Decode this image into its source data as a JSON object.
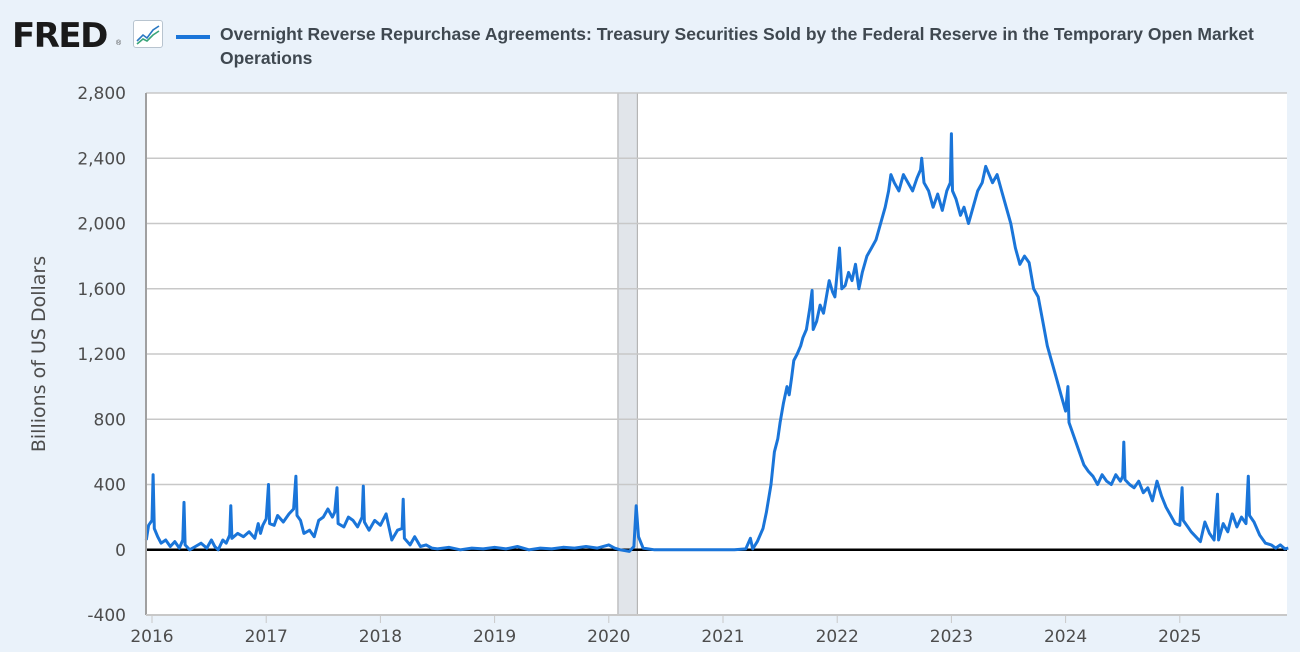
{
  "header": {
    "logo_text": "FRED",
    "logo_registered": "®",
    "logo_icon": "line-chart-icon",
    "title": "Overnight Reverse Repurchase Agreements: Treasury Securities Sold by the Federal Reserve in the Temporary Open Market Operations"
  },
  "colors": {
    "series": "#1a75d9",
    "background": "#eaf2fa",
    "plot_background": "#ffffff",
    "gridline": "#c8c8c8",
    "zero_line": "#000000",
    "recession_shade": "#e1e5ea"
  },
  "chart_data": {
    "type": "line",
    "title": "Overnight Reverse Repurchase Agreements: Treasury Securities Sold by the Federal Reserve in the Temporary Open Market Operations",
    "xlabel": "",
    "ylabel": "Billions of US Dollars",
    "ylim": [
      -400,
      2800
    ],
    "xlim": [
      2015.95,
      2025.95
    ],
    "yticks": [
      -400,
      0,
      400,
      800,
      1200,
      1600,
      2000,
      2400,
      2800
    ],
    "ytick_labels": [
      "-400",
      "0",
      "400",
      "800",
      "1,200",
      "1,600",
      "2,000",
      "2,400",
      "2,800"
    ],
    "xticks": [
      2016,
      2017,
      2018,
      2019,
      2020,
      2021,
      2022,
      2023,
      2024,
      2025
    ],
    "xtick_labels": [
      "2016",
      "2017",
      "2018",
      "2019",
      "2020",
      "2021",
      "2022",
      "2023",
      "2024",
      "2025"
    ],
    "grid": true,
    "legend": "top-left",
    "recessions": [
      [
        2020.08,
        2020.25
      ]
    ],
    "series": [
      {
        "name": "Overnight Reverse Repurchase Agreements: Treasury Securities Sold by the Federal Reserve in the Temporary Open Market Operations",
        "points": [
          [
            2015.95,
            60
          ],
          [
            2015.97,
            150
          ],
          [
            2016.0,
            180
          ],
          [
            2016.01,
            460
          ],
          [
            2016.02,
            130
          ],
          [
            2016.05,
            80
          ],
          [
            2016.08,
            40
          ],
          [
            2016.12,
            60
          ],
          [
            2016.16,
            20
          ],
          [
            2016.2,
            50
          ],
          [
            2016.24,
            10
          ],
          [
            2016.27,
            60
          ],
          [
            2016.28,
            290
          ],
          [
            2016.29,
            30
          ],
          [
            2016.33,
            0
          ],
          [
            2016.38,
            20
          ],
          [
            2016.43,
            40
          ],
          [
            2016.48,
            10
          ],
          [
            2016.52,
            60
          ],
          [
            2016.55,
            20
          ],
          [
            2016.58,
            0
          ],
          [
            2016.62,
            60
          ],
          [
            2016.65,
            40
          ],
          [
            2016.68,
            90
          ],
          [
            2016.69,
            270
          ],
          [
            2016.7,
            70
          ],
          [
            2016.75,
            100
          ],
          [
            2016.8,
            80
          ],
          [
            2016.85,
            110
          ],
          [
            2016.9,
            70
          ],
          [
            2016.93,
            160
          ],
          [
            2016.95,
            100
          ],
          [
            2016.97,
            150
          ],
          [
            2017.0,
            190
          ],
          [
            2017.02,
            400
          ],
          [
            2017.03,
            160
          ],
          [
            2017.07,
            150
          ],
          [
            2017.1,
            210
          ],
          [
            2017.15,
            170
          ],
          [
            2017.2,
            220
          ],
          [
            2017.24,
            250
          ],
          [
            2017.26,
            450
          ],
          [
            2017.27,
            210
          ],
          [
            2017.3,
            180
          ],
          [
            2017.33,
            100
          ],
          [
            2017.38,
            120
          ],
          [
            2017.42,
            80
          ],
          [
            2017.46,
            180
          ],
          [
            2017.5,
            200
          ],
          [
            2017.54,
            250
          ],
          [
            2017.58,
            200
          ],
          [
            2017.6,
            230
          ],
          [
            2017.62,
            380
          ],
          [
            2017.63,
            160
          ],
          [
            2017.68,
            140
          ],
          [
            2017.72,
            200
          ],
          [
            2017.76,
            180
          ],
          [
            2017.8,
            140
          ],
          [
            2017.84,
            200
          ],
          [
            2017.85,
            390
          ],
          [
            2017.86,
            170
          ],
          [
            2017.9,
            120
          ],
          [
            2017.95,
            180
          ],
          [
            2018.0,
            150
          ],
          [
            2018.05,
            220
          ],
          [
            2018.1,
            60
          ],
          [
            2018.15,
            120
          ],
          [
            2018.19,
            130
          ],
          [
            2018.2,
            310
          ],
          [
            2018.21,
            70
          ],
          [
            2018.26,
            30
          ],
          [
            2018.3,
            80
          ],
          [
            2018.35,
            20
          ],
          [
            2018.4,
            30
          ],
          [
            2018.45,
            10
          ],
          [
            2018.5,
            5
          ],
          [
            2018.6,
            15
          ],
          [
            2018.7,
            0
          ],
          [
            2018.8,
            10
          ],
          [
            2018.9,
            5
          ],
          [
            2019.0,
            15
          ],
          [
            2019.1,
            5
          ],
          [
            2019.2,
            20
          ],
          [
            2019.3,
            0
          ],
          [
            2019.4,
            10
          ],
          [
            2019.5,
            5
          ],
          [
            2019.6,
            15
          ],
          [
            2019.7,
            10
          ],
          [
            2019.8,
            20
          ],
          [
            2019.9,
            10
          ],
          [
            2020.0,
            30
          ],
          [
            2020.05,
            10
          ],
          [
            2020.1,
            0
          ],
          [
            2020.18,
            -10
          ],
          [
            2020.22,
            20
          ],
          [
            2020.24,
            270
          ],
          [
            2020.26,
            80
          ],
          [
            2020.3,
            10
          ],
          [
            2020.4,
            0
          ],
          [
            2020.5,
            0
          ],
          [
            2020.6,
            0
          ],
          [
            2020.7,
            0
          ],
          [
            2020.8,
            0
          ],
          [
            2020.9,
            0
          ],
          [
            2021.0,
            0
          ],
          [
            2021.1,
            0
          ],
          [
            2021.2,
            5
          ],
          [
            2021.24,
            70
          ],
          [
            2021.26,
            5
          ],
          [
            2021.3,
            50
          ],
          [
            2021.35,
            130
          ],
          [
            2021.38,
            230
          ],
          [
            2021.42,
            400
          ],
          [
            2021.45,
            600
          ],
          [
            2021.48,
            680
          ],
          [
            2021.5,
            780
          ],
          [
            2021.53,
            900
          ],
          [
            2021.56,
            1000
          ],
          [
            2021.58,
            950
          ],
          [
            2021.6,
            1050
          ],
          [
            2021.62,
            1160
          ],
          [
            2021.65,
            1200
          ],
          [
            2021.68,
            1250
          ],
          [
            2021.7,
            1300
          ],
          [
            2021.73,
            1350
          ],
          [
            2021.76,
            1480
          ],
          [
            2021.78,
            1590
          ],
          [
            2021.79,
            1350
          ],
          [
            2021.82,
            1400
          ],
          [
            2021.85,
            1500
          ],
          [
            2021.88,
            1450
          ],
          [
            2021.9,
            1530
          ],
          [
            2021.93,
            1650
          ],
          [
            2021.96,
            1580
          ],
          [
            2021.98,
            1550
          ],
          [
            2022.0,
            1700
          ],
          [
            2022.02,
            1850
          ],
          [
            2022.04,
            1600
          ],
          [
            2022.07,
            1620
          ],
          [
            2022.1,
            1700
          ],
          [
            2022.13,
            1650
          ],
          [
            2022.16,
            1750
          ],
          [
            2022.19,
            1600
          ],
          [
            2022.22,
            1700
          ],
          [
            2022.26,
            1800
          ],
          [
            2022.3,
            1850
          ],
          [
            2022.34,
            1900
          ],
          [
            2022.38,
            2000
          ],
          [
            2022.42,
            2100
          ],
          [
            2022.45,
            2200
          ],
          [
            2022.47,
            2300
          ],
          [
            2022.5,
            2250
          ],
          [
            2022.54,
            2200
          ],
          [
            2022.58,
            2300
          ],
          [
            2022.62,
            2250
          ],
          [
            2022.66,
            2200
          ],
          [
            2022.7,
            2280
          ],
          [
            2022.73,
            2330
          ],
          [
            2022.74,
            2400
          ],
          [
            2022.76,
            2250
          ],
          [
            2022.8,
            2200
          ],
          [
            2022.84,
            2100
          ],
          [
            2022.88,
            2180
          ],
          [
            2022.92,
            2080
          ],
          [
            2022.96,
            2200
          ],
          [
            2022.99,
            2250
          ],
          [
            2023.0,
            2550
          ],
          [
            2023.01,
            2200
          ],
          [
            2023.04,
            2150
          ],
          [
            2023.08,
            2050
          ],
          [
            2023.11,
            2100
          ],
          [
            2023.15,
            2000
          ],
          [
            2023.19,
            2100
          ],
          [
            2023.23,
            2200
          ],
          [
            2023.27,
            2250
          ],
          [
            2023.3,
            2350
          ],
          [
            2023.33,
            2300
          ],
          [
            2023.36,
            2250
          ],
          [
            2023.4,
            2300
          ],
          [
            2023.44,
            2200
          ],
          [
            2023.48,
            2100
          ],
          [
            2023.52,
            2000
          ],
          [
            2023.56,
            1850
          ],
          [
            2023.6,
            1750
          ],
          [
            2023.64,
            1800
          ],
          [
            2023.68,
            1760
          ],
          [
            2023.72,
            1600
          ],
          [
            2023.76,
            1550
          ],
          [
            2023.8,
            1400
          ],
          [
            2023.84,
            1250
          ],
          [
            2023.88,
            1150
          ],
          [
            2023.92,
            1050
          ],
          [
            2023.96,
            950
          ],
          [
            2024.0,
            850
          ],
          [
            2024.02,
            1000
          ],
          [
            2024.03,
            780
          ],
          [
            2024.07,
            700
          ],
          [
            2024.12,
            600
          ],
          [
            2024.16,
            520
          ],
          [
            2024.2,
            480
          ],
          [
            2024.24,
            450
          ],
          [
            2024.28,
            400
          ],
          [
            2024.32,
            460
          ],
          [
            2024.36,
            420
          ],
          [
            2024.4,
            400
          ],
          [
            2024.44,
            460
          ],
          [
            2024.48,
            420
          ],
          [
            2024.5,
            450
          ],
          [
            2024.51,
            660
          ],
          [
            2024.52,
            430
          ],
          [
            2024.56,
            400
          ],
          [
            2024.6,
            380
          ],
          [
            2024.64,
            420
          ],
          [
            2024.68,
            350
          ],
          [
            2024.72,
            380
          ],
          [
            2024.76,
            300
          ],
          [
            2024.8,
            420
          ],
          [
            2024.84,
            330
          ],
          [
            2024.88,
            260
          ],
          [
            2024.92,
            210
          ],
          [
            2024.96,
            160
          ],
          [
            2025.0,
            150
          ],
          [
            2025.02,
            380
          ],
          [
            2025.03,
            180
          ],
          [
            2025.07,
            140
          ],
          [
            2025.1,
            110
          ],
          [
            2025.14,
            80
          ],
          [
            2025.18,
            50
          ],
          [
            2025.22,
            170
          ],
          [
            2025.26,
            100
          ],
          [
            2025.3,
            60
          ],
          [
            2025.33,
            340
          ],
          [
            2025.34,
            60
          ],
          [
            2025.38,
            160
          ],
          [
            2025.42,
            110
          ],
          [
            2025.46,
            220
          ],
          [
            2025.5,
            140
          ],
          [
            2025.54,
            200
          ],
          [
            2025.58,
            160
          ],
          [
            2025.6,
            450
          ],
          [
            2025.61,
            210
          ],
          [
            2025.65,
            170
          ],
          [
            2025.7,
            90
          ],
          [
            2025.75,
            40
          ],
          [
            2025.8,
            30
          ],
          [
            2025.84,
            10
          ],
          [
            2025.88,
            30
          ],
          [
            2025.92,
            5
          ],
          [
            2025.95,
            10
          ]
        ]
      }
    ]
  }
}
